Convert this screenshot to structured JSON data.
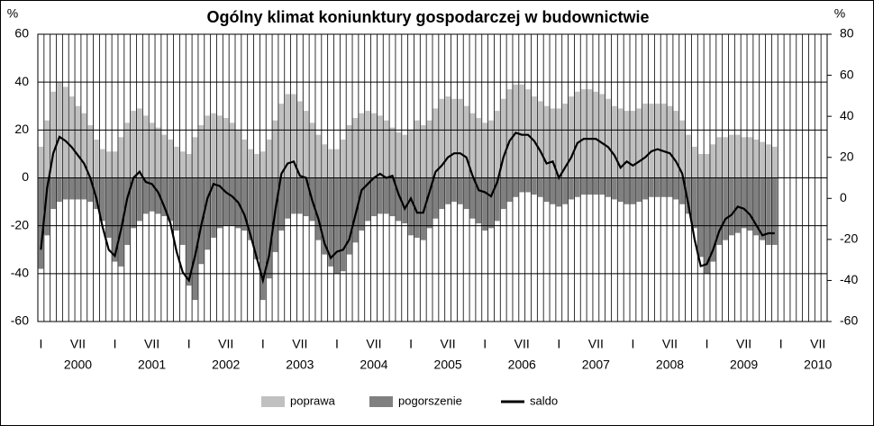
{
  "chart_data": {
    "type": "bar-line",
    "title": "Ogólny klimat koniunktury gospodarczej w budownictwie",
    "y_unit": "%",
    "y2_unit": "%",
    "categories": [
      "I",
      null,
      null,
      null,
      null,
      null,
      "VII",
      null,
      null,
      null,
      null,
      null,
      "I",
      null,
      null,
      null,
      null,
      null,
      "VII",
      null,
      null,
      null,
      null,
      null,
      "I",
      null,
      null,
      null,
      null,
      null,
      "VII",
      null,
      null,
      null,
      null,
      null,
      "I",
      null,
      null,
      null,
      null,
      null,
      "VII",
      null,
      null,
      null,
      null,
      null,
      "I",
      null,
      null,
      null,
      null,
      null,
      "VII",
      null,
      null,
      null,
      null,
      null,
      "I",
      null,
      null,
      null,
      null,
      null,
      "VII",
      null,
      null,
      null,
      null,
      null,
      "I",
      null,
      null,
      null,
      null,
      null,
      "VII",
      null,
      null,
      null,
      null,
      null,
      "I",
      null,
      null,
      null,
      null,
      null,
      "VII",
      null,
      null,
      null,
      null,
      null,
      "I",
      null,
      null,
      null,
      null,
      null,
      "VII",
      null,
      null,
      null,
      null,
      null,
      "I",
      null,
      null,
      null,
      null,
      null,
      "VII",
      null,
      null,
      null,
      null,
      null,
      "I",
      null,
      null,
      null,
      null,
      null,
      "VII",
      null
    ],
    "years": [
      "2000",
      "2001",
      "2002",
      "2003",
      "2004",
      "2005",
      "2006",
      "2007",
      "2008",
      "2009",
      "2010"
    ],
    "series": [
      {
        "name": "poprawa",
        "color": "#c0c0c0",
        "values": [
          13,
          24,
          36,
          40,
          38,
          34,
          30,
          27,
          22,
          16,
          12,
          11,
          11,
          17,
          23,
          28,
          29,
          26,
          23,
          21,
          18,
          16,
          13,
          11,
          10,
          17,
          22,
          26,
          27,
          26,
          25,
          23,
          20,
          16,
          12,
          10,
          11,
          16,
          24,
          31,
          35,
          35,
          32,
          28,
          23,
          18,
          14,
          12,
          12,
          16,
          22,
          25,
          27,
          28,
          27,
          26,
          24,
          21,
          19,
          18,
          20,
          24,
          22,
          24,
          29,
          33,
          34,
          33,
          33,
          30,
          27,
          25,
          23,
          24,
          28,
          33,
          37,
          39,
          39,
          37,
          34,
          32,
          30,
          29,
          29,
          31,
          34,
          36,
          37,
          37,
          36,
          35,
          33,
          30,
          29,
          28,
          28,
          29,
          31,
          31,
          31,
          31,
          30,
          28,
          24,
          18,
          13,
          10,
          10,
          14,
          17,
          17,
          18,
          18,
          17,
          17,
          16,
          15,
          14,
          13,
          null,
          null,
          null,
          null,
          null,
          null,
          null,
          null
        ]
      },
      {
        "name": "pogorszenie",
        "color": "#808080",
        "values": [
          -38,
          -24,
          -13,
          -10,
          -9,
          -9,
          -9,
          -9,
          -10,
          -13,
          -18,
          -25,
          -35,
          -37,
          -28,
          -21,
          -18,
          -15,
          -14,
          -15,
          -16,
          -18,
          -22,
          -28,
          -45,
          -51,
          -36,
          -30,
          -25,
          -21,
          -20,
          -20,
          -21,
          -22,
          -26,
          -34,
          -51,
          -42,
          -31,
          -22,
          -17,
          -15,
          -15,
          -16,
          -18,
          -26,
          -32,
          -37,
          -40,
          -39,
          -32,
          -27,
          -22,
          -18,
          -16,
          -15,
          -15,
          -16,
          -18,
          -19,
          -24,
          -25,
          -26,
          -21,
          -17,
          -13,
          -11,
          -10,
          -11,
          -13,
          -17,
          -19,
          -22,
          -21,
          -18,
          -13,
          -10,
          -8,
          -6,
          -6,
          -7,
          -8,
          -10,
          -11,
          -12,
          -11,
          -9,
          -8,
          -7,
          -7,
          -7,
          -7,
          -8,
          -9,
          -10,
          -11,
          -11,
          -10,
          -9,
          -8,
          -8,
          -8,
          -8,
          -9,
          -11,
          -15,
          -21,
          -33,
          -40,
          -35,
          -28,
          -26,
          -24,
          -23,
          -21,
          -22,
          -24,
          -26,
          -28,
          -28,
          null,
          null,
          null,
          null,
          null,
          null,
          null,
          null
        ]
      },
      {
        "name": "saldo",
        "color": "#000000",
        "axis": "y2",
        "values": [
          -25,
          5,
          22,
          30,
          28,
          25,
          21,
          17,
          10,
          0,
          -14,
          -25,
          -28,
          -15,
          0,
          10,
          13,
          8,
          7,
          3,
          -4,
          -12,
          -26,
          -36,
          -40,
          -28,
          -13,
          0,
          7,
          6,
          3,
          1,
          -2,
          -8,
          -18,
          -29,
          -40,
          -28,
          -6,
          12,
          17,
          18,
          11,
          10,
          -1,
          -10,
          -22,
          -29,
          -26,
          -25,
          -20,
          -8,
          4,
          7,
          10,
          12,
          10,
          11,
          2,
          -5,
          0,
          -7,
          -7,
          3,
          13,
          16,
          20,
          22,
          22,
          20,
          11,
          4,
          3,
          1,
          8,
          20,
          28,
          32,
          31,
          31,
          28,
          23,
          17,
          18,
          10,
          15,
          20,
          27,
          29,
          29,
          29,
          27,
          25,
          21,
          15,
          18,
          16,
          18,
          20,
          23,
          24,
          23,
          22,
          18,
          12,
          -3,
          -20,
          -33,
          -32,
          -25,
          -16,
          -10,
          -8,
          -4,
          -5,
          -8,
          -13,
          -18,
          -17,
          -17,
          null,
          null,
          null,
          null,
          null,
          null,
          null,
          null
        ]
      }
    ],
    "ylim": [
      -60,
      60
    ],
    "yticks": [
      -60,
      -40,
      -20,
      0,
      20,
      40,
      60
    ],
    "y2lim": [
      -60,
      80
    ],
    "y2ticks": [
      -60,
      -40,
      -20,
      0,
      20,
      40,
      60,
      80
    ],
    "grid": true,
    "legend": "bottom"
  }
}
